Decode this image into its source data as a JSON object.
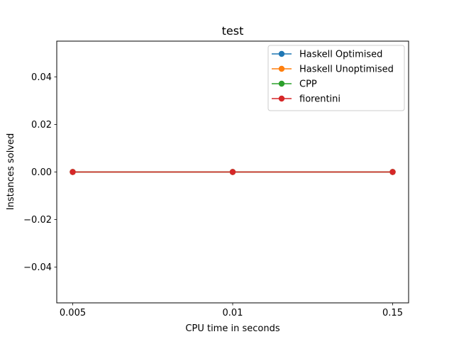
{
  "chart_data": {
    "type": "line",
    "title": "test",
    "xlabel": "CPU time in seconds",
    "ylabel": "Instances solved",
    "categories": [
      "0.005",
      "0.01",
      "0.15"
    ],
    "x_scale": "categorical",
    "ylim": [
      -0.055,
      0.055
    ],
    "yticks": [
      -0.04,
      -0.02,
      0.0,
      0.02,
      0.04
    ],
    "ytick_labels": [
      "−0.04",
      "−0.02",
      "0.00",
      "0.02",
      "0.04"
    ],
    "grid": false,
    "legend_position": "top-right",
    "series": [
      {
        "name": "Haskell Optimised",
        "values": [
          0,
          0,
          0
        ],
        "color": "#1f77b4",
        "marker": "circle"
      },
      {
        "name": "Haskell Unoptimised",
        "values": [
          0,
          0,
          0
        ],
        "color": "#ff7f0e",
        "marker": "circle"
      },
      {
        "name": "CPP",
        "values": [
          0,
          0,
          0
        ],
        "color": "#2ca02c",
        "marker": "circle"
      },
      {
        "name": "fiorentini",
        "values": [
          0,
          0,
          0
        ],
        "color": "#d62728",
        "marker": "circle"
      }
    ]
  }
}
